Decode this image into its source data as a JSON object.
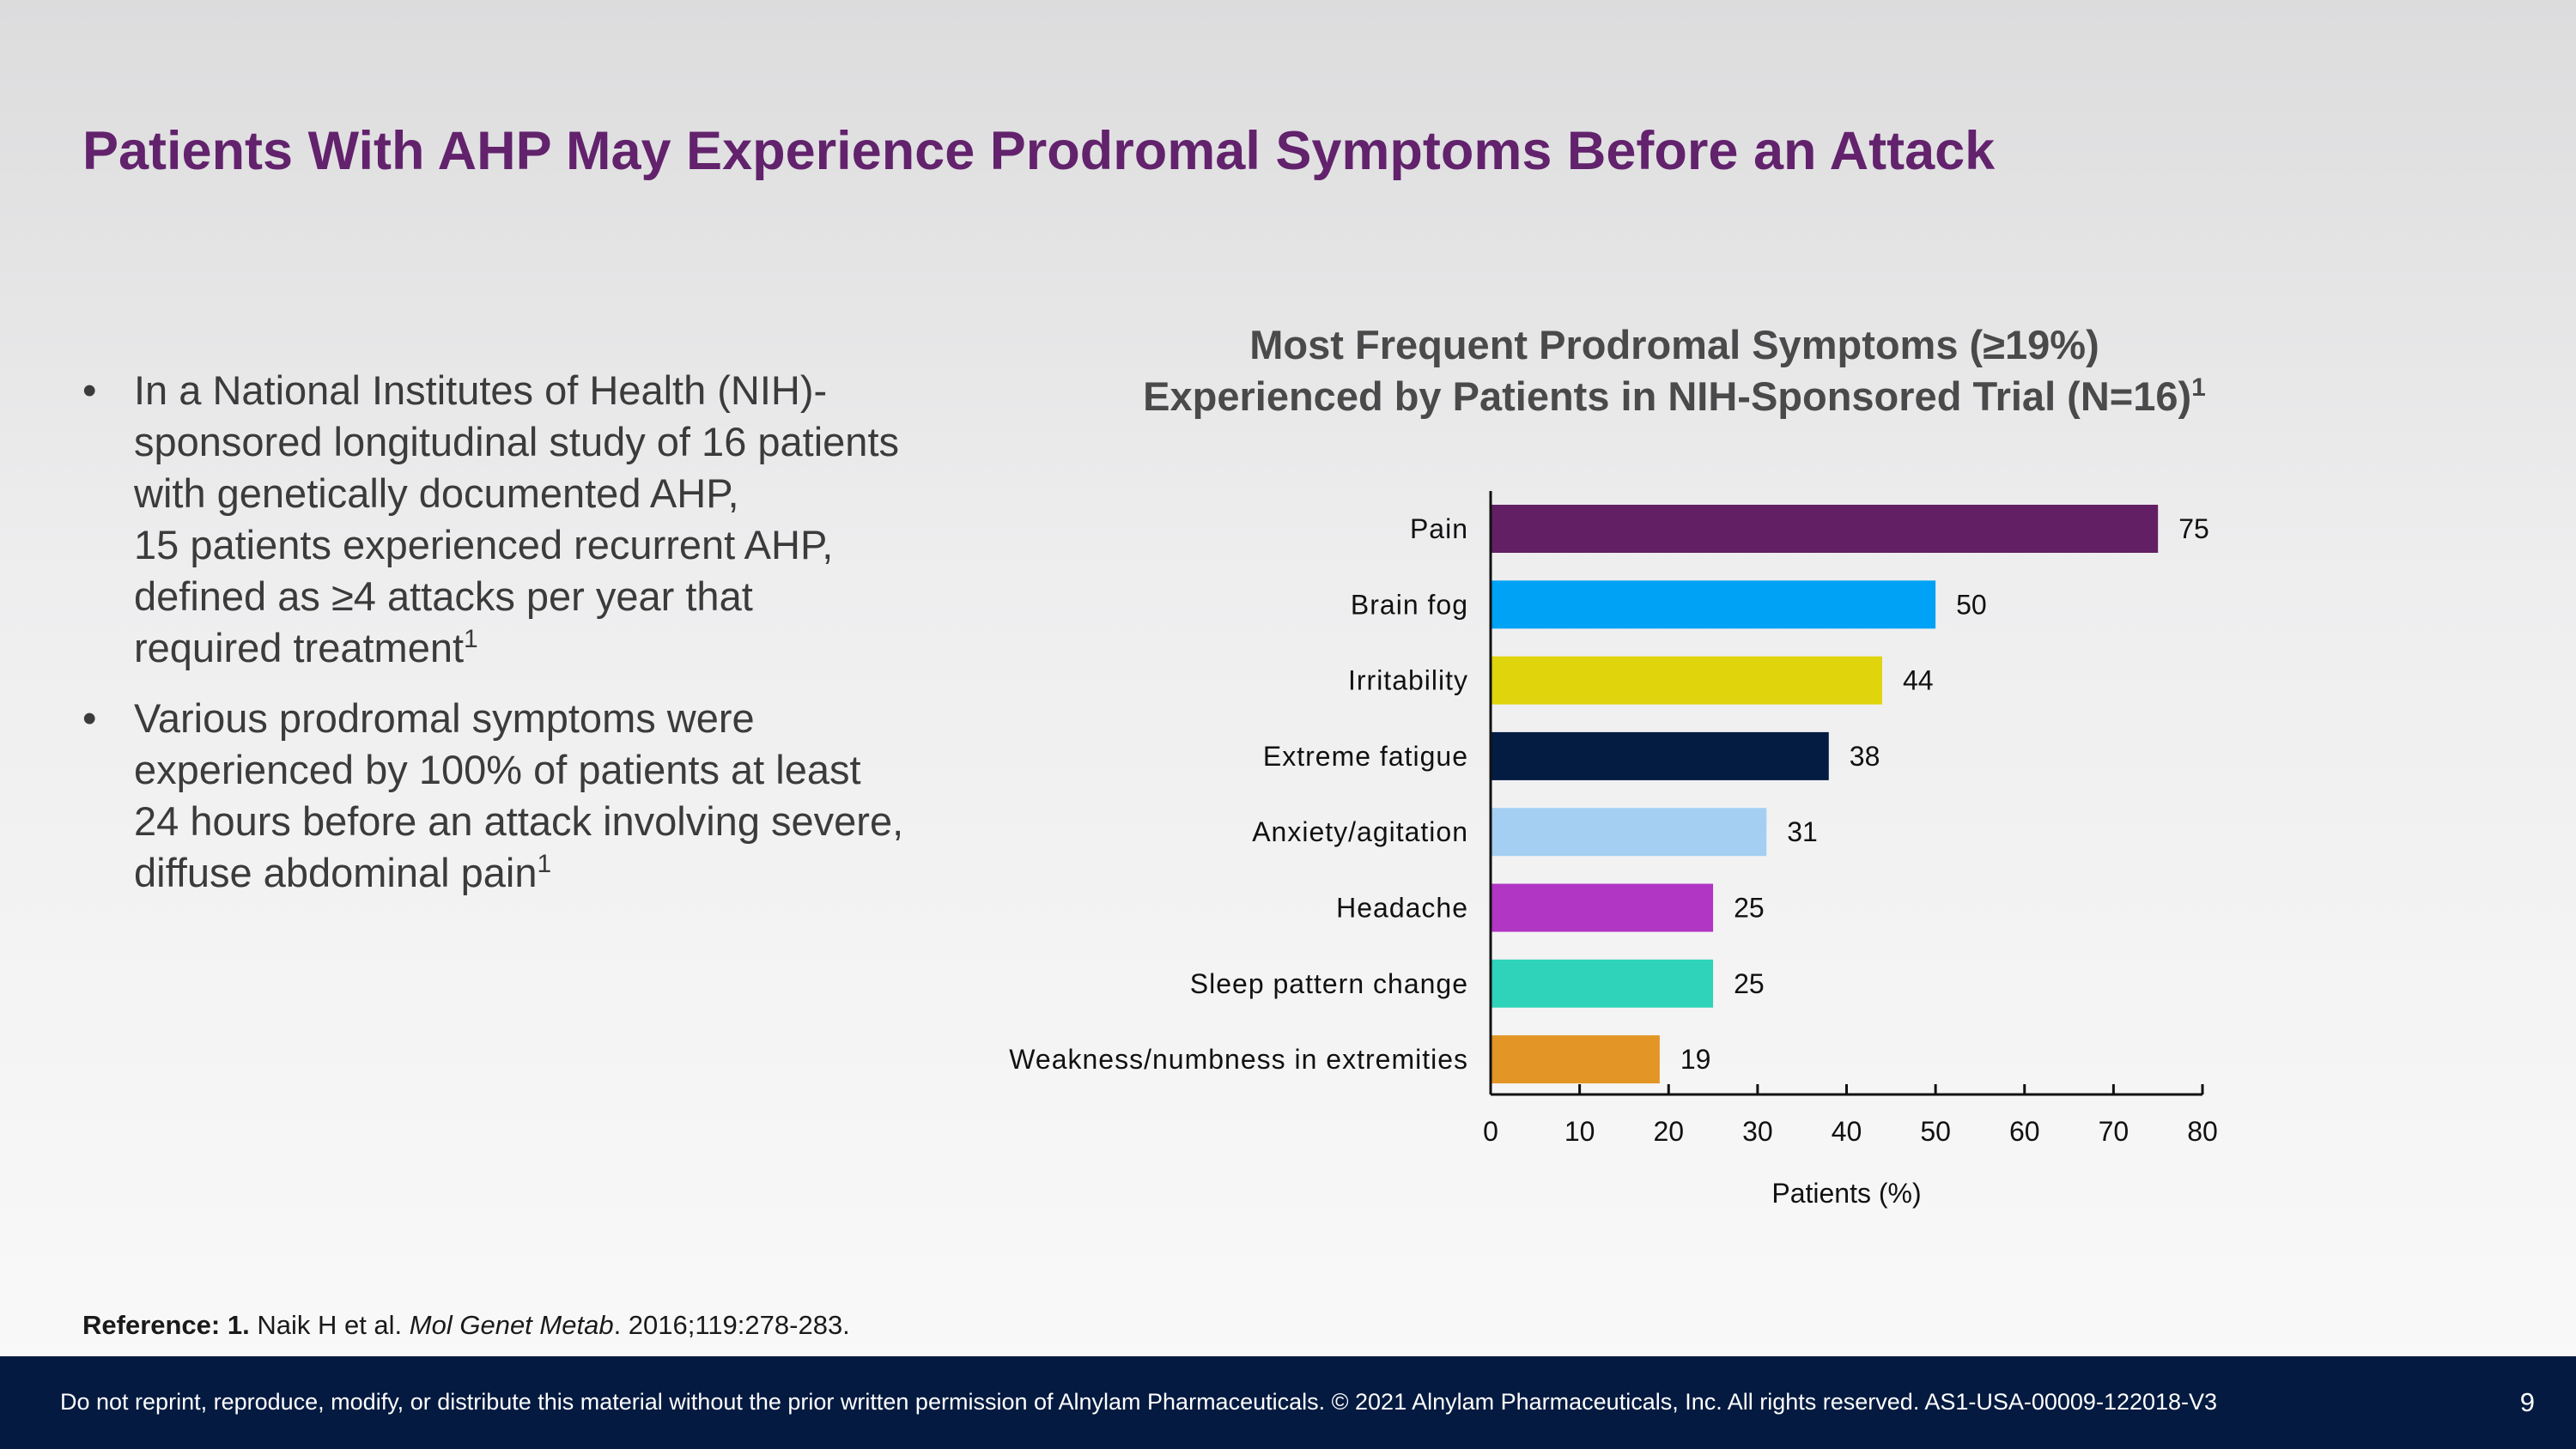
{
  "slide": {
    "title": "Patients With AHP May Experience Prodromal Symptoms Before an Attack",
    "bullets": [
      {
        "lines": [
          "In a National Institutes of Health (NIH)-",
          "sponsored longitudinal study of 16 patients",
          "with genetically documented AHP,",
          "15 patients experienced recurrent AHP,",
          "defined as ≥4 attacks per year that",
          "required treatment"
        ],
        "sup": "1"
      },
      {
        "lines": [
          "Various prodromal symptoms were",
          "experienced by 100% of patients at least",
          "24 hours before an attack involving severe,",
          "diffuse abdominal pain"
        ],
        "sup": "1"
      }
    ],
    "bullet_marker": "•",
    "reference": {
      "label": "Reference: 1.",
      "authors": " Naik H et al. ",
      "journal": "Mol Genet Metab",
      "details": ". 2016;119:278-283."
    },
    "footer": {
      "disclaimer": "Do not reprint, reproduce, modify, or distribute this material without the prior written permission of Alnylam Pharmaceuticals. © 2021 Alnylam Pharmaceuticals, Inc. All rights reserved. AS1-USA-00009-122018-V3",
      "page_number": "9"
    }
  },
  "chart_data": {
    "type": "bar",
    "orientation": "horizontal",
    "title_line1": "Most Frequent Prodromal Symptoms (≥19%)",
    "title_line2": "Experienced by Patients in NIH-Sponsored Trial (N=16)",
    "title_sup": "1",
    "categories": [
      "Pain",
      "Brain fog",
      "Irritability",
      "Extreme fatigue",
      "Anxiety/agitation",
      "Headache",
      "Sleep pattern change",
      "Weakness/numbness in extremities"
    ],
    "values": [
      75,
      50,
      44,
      38,
      31,
      25,
      25,
      19
    ],
    "colors": [
      "#631f63",
      "#00a2f5",
      "#e0d40d",
      "#041b42",
      "#a4cff2",
      "#b136c4",
      "#2fd3b9",
      "#e39525"
    ],
    "xlabel": "Patients (%)",
    "xlim": [
      0,
      80
    ],
    "xticks": [
      0,
      10,
      20,
      30,
      40,
      50,
      60,
      70,
      80
    ],
    "grid": false,
    "legend": "none"
  }
}
